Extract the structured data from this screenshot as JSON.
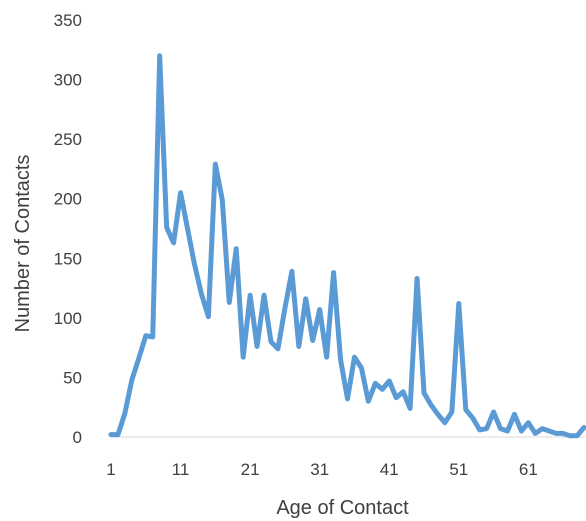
{
  "chart_data": {
    "type": "line",
    "title": "",
    "xlabel": "Age of Contact",
    "ylabel": "Number of Contacts",
    "xlim": [
      1,
      69
    ],
    "ylim": [
      0,
      350
    ],
    "x_ticks": [
      1,
      11,
      21,
      31,
      41,
      51,
      61
    ],
    "y_ticks": [
      0,
      50,
      100,
      150,
      200,
      250,
      300,
      350
    ],
    "grid": false,
    "legend": "none",
    "series_color": "#5B9BD5",
    "series": [
      {
        "x": [
          1,
          2,
          3,
          4,
          5,
          6,
          7,
          8,
          9,
          10,
          11,
          12,
          13,
          14,
          15,
          16,
          17,
          18,
          19,
          20,
          21,
          22,
          23,
          24,
          25,
          26,
          27,
          28,
          29,
          30,
          31,
          32,
          33,
          34,
          35,
          36,
          37,
          38,
          39,
          40,
          41,
          42,
          43,
          44,
          45,
          46,
          47,
          48,
          49,
          50,
          51,
          52,
          53,
          54,
          55,
          56,
          57,
          58,
          59,
          60,
          61,
          62,
          63,
          64,
          65,
          66,
          67,
          68,
          69
        ],
        "values": [
          2,
          2,
          20,
          48,
          66,
          85,
          84,
          320,
          176,
          163,
          205,
          175,
          145,
          120,
          101,
          229,
          199,
          113,
          158,
          67,
          119,
          76,
          119,
          80,
          74,
          108,
          139,
          76,
          116,
          81,
          107,
          67,
          138,
          65,
          32,
          67,
          58,
          30,
          45,
          40,
          47,
          33,
          38,
          24,
          133,
          37,
          27,
          19,
          12,
          21,
          112,
          23,
          16,
          6,
          7,
          21,
          7,
          5,
          19,
          5,
          12,
          3,
          7,
          5,
          3,
          3,
          1,
          1,
          8
        ]
      }
    ]
  }
}
